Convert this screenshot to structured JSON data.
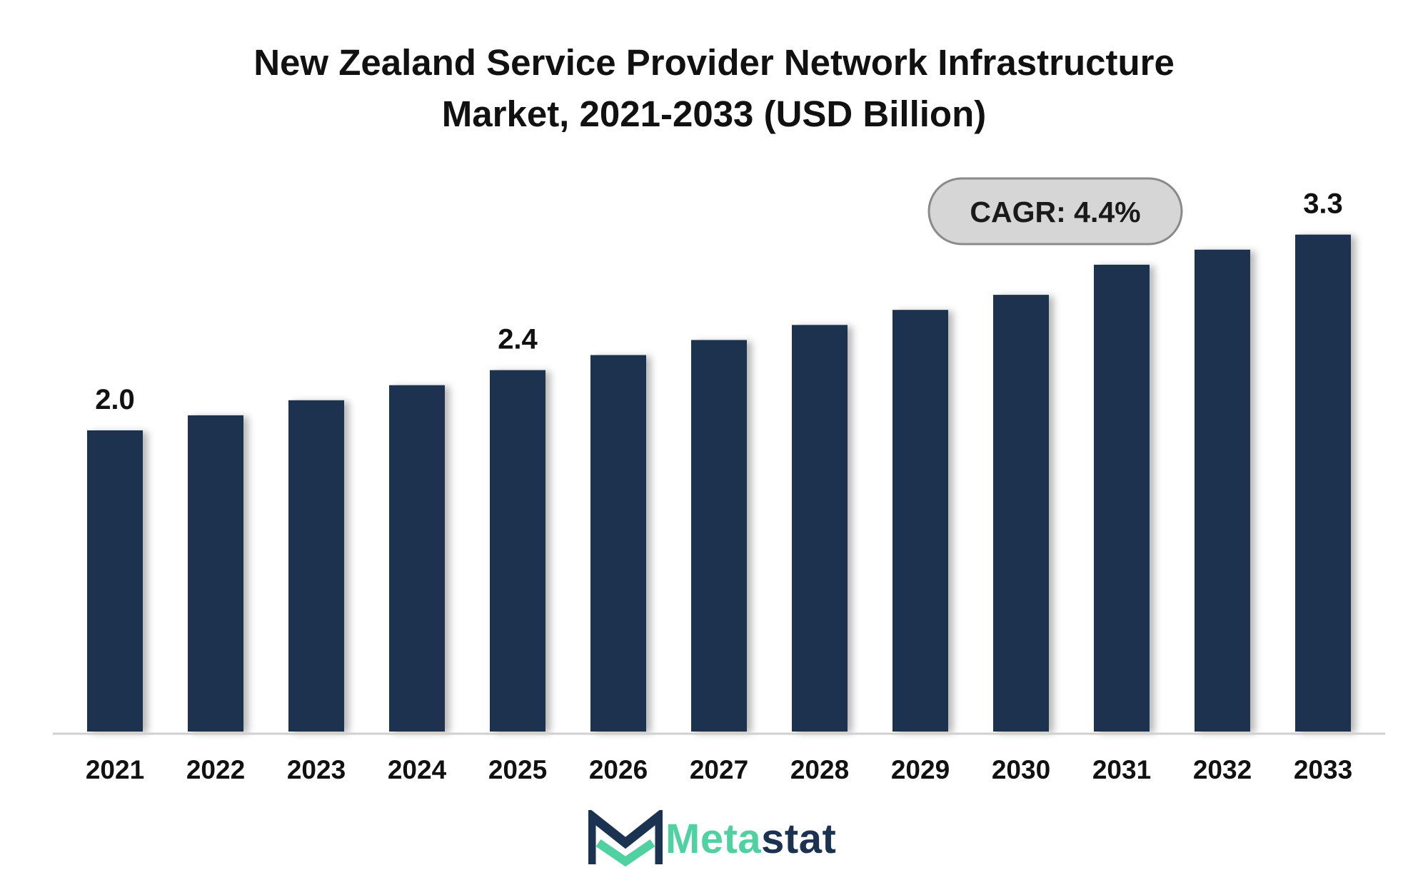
{
  "chart_data": {
    "type": "bar",
    "title_lines": [
      "New Zealand Service Provider Network Infrastructure",
      "Market, 2021-2033 (USD Billion)"
    ],
    "categories": [
      "2021",
      "2022",
      "2023",
      "2024",
      "2025",
      "2026",
      "2027",
      "2028",
      "2029",
      "2030",
      "2031",
      "2032",
      "2033"
    ],
    "values": [
      2.0,
      2.1,
      2.2,
      2.3,
      2.4,
      2.5,
      2.6,
      2.7,
      2.8,
      2.9,
      3.1,
      3.2,
      3.3
    ],
    "data_labels": [
      {
        "category": "2021",
        "text": "2.0"
      },
      {
        "category": "2025",
        "text": "2.4"
      },
      {
        "category": "2033",
        "text": "3.3"
      }
    ],
    "annotation": "CAGR: 4.4%",
    "xlabel": "",
    "ylabel": "",
    "ylim": [
      0,
      3.6
    ],
    "grid": false,
    "legend": "none",
    "bar_color": "#1b3250",
    "axis_color": "#d0d0d0"
  },
  "logo": {
    "part1": "Meta",
    "part2": "stat",
    "color_primary": "#4fd1a1",
    "color_secondary": "#1b3250"
  }
}
